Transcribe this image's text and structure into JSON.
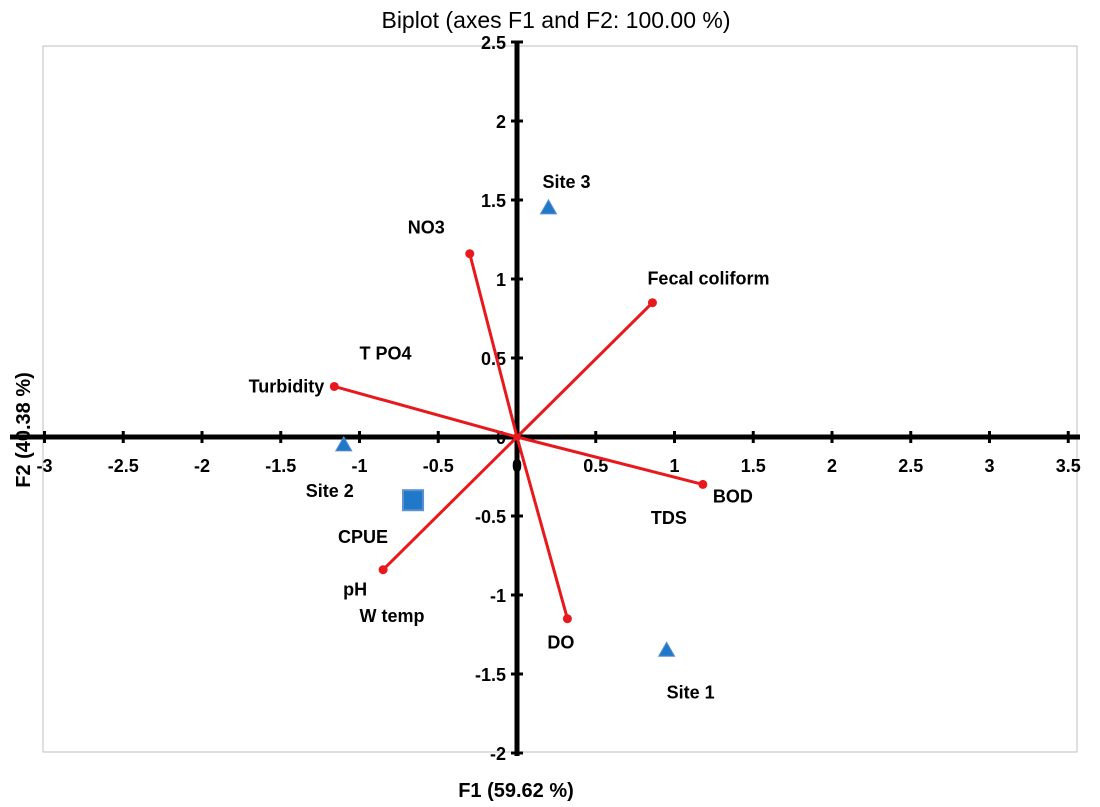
{
  "chart_data": {
    "type": "scatter",
    "title": "Biplot (axes F1 and F2: 100.00 %)",
    "xlabel": "F1 (59.62 %)",
    "ylabel": "F2 (40.38 %)",
    "xlim": [
      -3,
      3.5
    ],
    "ylim": [
      -2,
      2.5
    ],
    "xticks": [
      "-3",
      "-2.5",
      "-2",
      "-1.5",
      "-1",
      "-0.5",
      "0",
      "0.5",
      "1",
      "1.5",
      "2",
      "2.5",
      "3",
      "3.5"
    ],
    "yticks": [
      "-2",
      "-1.5",
      "-1",
      "-0.5",
      "0",
      "0.5",
      "1",
      "1.5",
      "2",
      "2.5"
    ],
    "grid": false,
    "colors": {
      "vectors": "#e8191c",
      "observations": "#1f78c8",
      "marker_edge": "#5b8fd0"
    },
    "vectors": [
      {
        "label": "NO3",
        "x": -0.3,
        "y": 1.16
      },
      {
        "label": "Fecal coliform",
        "x": 0.86,
        "y": 0.85
      },
      {
        "label": "Turbidity",
        "x": -1.16,
        "y": 0.32
      },
      {
        "label": "BOD",
        "x": 1.18,
        "y": -0.3
      },
      {
        "label": "DO",
        "x": 0.32,
        "y": -1.15
      },
      {
        "label": "pH",
        "x": -0.85,
        "y": -0.84
      }
    ],
    "observations": [
      {
        "label": "Site 3",
        "x": 0.2,
        "y": 1.45,
        "marker": "triangle"
      },
      {
        "label": "Site 2",
        "x": -1.1,
        "y": -0.05,
        "marker": "triangle"
      },
      {
        "label": "Site 1",
        "x": 0.95,
        "y": -1.35,
        "marker": "triangle"
      },
      {
        "label": "CPUE",
        "x": -0.66,
        "y": -0.4,
        "marker": "square"
      }
    ],
    "annotations": [
      {
        "label": "T PO4",
        "x": -1.0,
        "y": 0.49
      },
      {
        "label": "TDS",
        "x": 0.85,
        "y": -0.55
      },
      {
        "label": "W temp",
        "x": -1.0,
        "y": -1.17
      }
    ]
  }
}
